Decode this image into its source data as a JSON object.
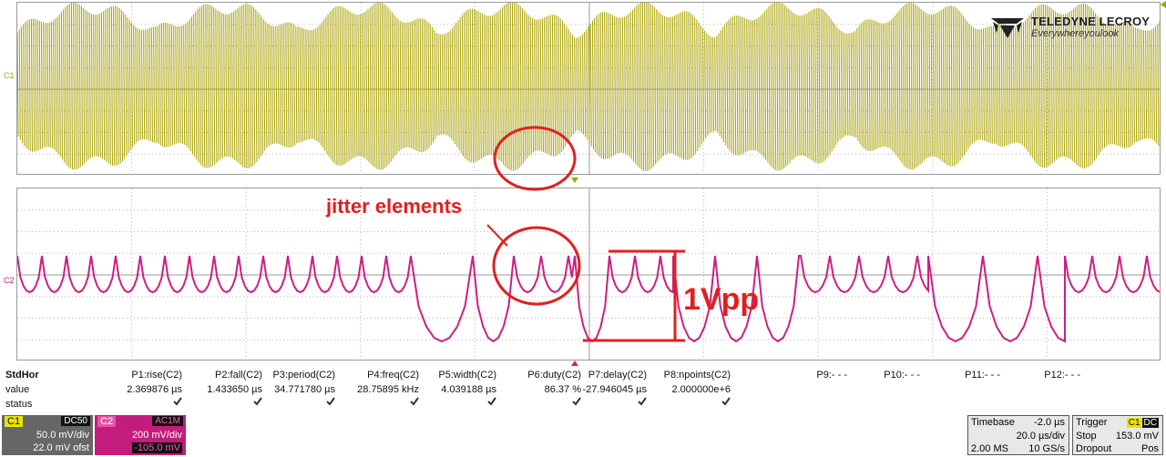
{
  "channels": {
    "c1": {
      "label": "C1",
      "coupling": "DC50",
      "vdiv": "50.0 mV/div",
      "offset": "22.0 mV ofst",
      "color": "#a8a000"
    },
    "c2": {
      "label": "C2",
      "coupling": "AC1M",
      "vdiv": "200 mV/div",
      "offset": "-105.0 mV",
      "color": "#cc1f80"
    }
  },
  "logo": {
    "name": "TELEDYNE LECROY",
    "tagline": "Everywhereyoulook"
  },
  "annotations": {
    "jitter": "jitter elements",
    "vpp": "1Vpp",
    "color": "#e02020"
  },
  "params": {
    "header_label": "StdHor",
    "row_labels": [
      "value",
      "status"
    ],
    "columns": [
      {
        "name": "P1:rise(C2)",
        "value": "2.369876 µs",
        "status": "ok"
      },
      {
        "name": "P2:fall(C2)",
        "value": "1.433650 µs",
        "status": "ok"
      },
      {
        "name": "P3:period(C2)",
        "value": "34.771780 µs",
        "status": "ok"
      },
      {
        "name": "P4:freq(C2)",
        "value": "28.75895 kHz",
        "status": "ok"
      },
      {
        "name": "P5:width(C2)",
        "value": "4.039188 µs",
        "status": "ok"
      },
      {
        "name": "P6:duty(C2)",
        "value": "86.37 %",
        "status": "ok"
      },
      {
        "name": "P7:delay(C2)",
        "value": "-27.946045 µs",
        "status": "ok"
      },
      {
        "name": "P8:npoints(C2)",
        "value": "2.000000e+6",
        "status": "ok"
      },
      {
        "name": "P9:- - -",
        "value": "",
        "status": ""
      },
      {
        "name": "P10:- - -",
        "value": "",
        "status": ""
      },
      {
        "name": "P11:- - -",
        "value": "",
        "status": ""
      },
      {
        "name": "P12:- - -",
        "value": "",
        "status": ""
      }
    ]
  },
  "timebase": {
    "label": "Timebase",
    "delay": "-2.0 µs",
    "tdiv": "20.0 µs/div",
    "samples": "2.00 MS",
    "rate": "10 GS/s"
  },
  "trigger": {
    "label": "Trigger",
    "source": "C1",
    "coupling": "DC",
    "mode": "Stop",
    "level": "153.0 mV",
    "type": "Dropout",
    "slope": "Pos"
  }
}
